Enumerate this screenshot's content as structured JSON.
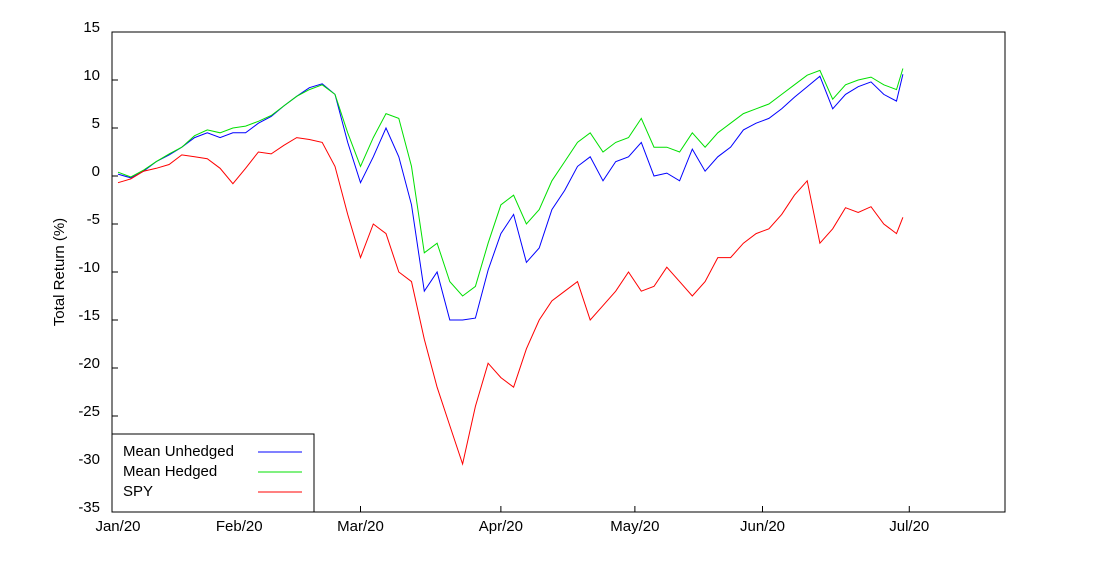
{
  "chart_data": {
    "type": "line",
    "y_label": "Total Return (%)",
    "x": [
      0,
      2,
      4,
      6,
      8,
      10,
      12,
      14,
      16,
      18,
      20,
      22,
      24,
      26,
      28,
      30,
      32,
      34,
      36,
      38,
      40,
      42,
      44,
      46,
      48,
      50,
      52,
      54,
      56,
      58,
      60,
      62,
      64,
      66,
      68,
      70,
      72,
      74,
      76,
      78,
      80,
      82,
      84,
      86,
      88,
      90,
      92,
      94,
      96,
      98,
      100,
      102,
      104,
      106,
      108,
      110,
      112,
      114,
      116,
      118,
      120,
      122,
      123
    ],
    "xlim": [
      0,
      139
    ],
    "xticks": [
      {
        "value": 0,
        "label": "Jan/20"
      },
      {
        "value": 19,
        "label": "Feb/20"
      },
      {
        "value": 38,
        "label": "Mar/20"
      },
      {
        "value": 60,
        "label": "Apr/20"
      },
      {
        "value": 81,
        "label": "May/20"
      },
      {
        "value": 101,
        "label": "Jun/20"
      },
      {
        "value": 124,
        "label": "Jul/20"
      }
    ],
    "ylim": [
      -35,
      15
    ],
    "yticks": [
      -35,
      -30,
      -25,
      -20,
      -15,
      -10,
      -5,
      0,
      5,
      10,
      15
    ],
    "legend": "lower left",
    "series": [
      {
        "name": "Mean Unhedged",
        "color": "#0000ff",
        "values": [
          0.2,
          -0.2,
          0.5,
          1.5,
          2.2,
          3.0,
          4.0,
          4.5,
          4.0,
          4.5,
          4.5,
          5.5,
          6.2,
          7.3,
          8.3,
          9.2,
          9.6,
          8.5,
          3.5,
          -0.7,
          2.0,
          5.0,
          2.0,
          -3,
          -12,
          -10,
          -15,
          -15,
          -14.8,
          -9.8,
          -6,
          -4,
          -9,
          -7.5,
          -3.5,
          -1.5,
          1,
          2,
          -0.5,
          1.5,
          2,
          3.5,
          0,
          0.3,
          -0.5,
          2.8,
          0.5,
          2,
          3,
          4.8,
          5.5,
          6,
          7,
          8.2,
          9.3,
          10.4,
          7,
          8.5,
          9.3,
          9.8,
          8.5,
          7.8,
          10.6
        ]
      },
      {
        "name": "Mean Hedged",
        "color": "#00e000",
        "values": [
          0.4,
          -0.1,
          0.6,
          1.5,
          2.3,
          3.0,
          4.2,
          4.8,
          4.5,
          5.0,
          5.2,
          5.7,
          6.3,
          7.3,
          8.3,
          9.0,
          9.5,
          8.5,
          4.5,
          1,
          4,
          6.5,
          6,
          1,
          -8,
          -7,
          -11,
          -12.5,
          -11.5,
          -7,
          -3,
          -2,
          -5,
          -3.5,
          -0.5,
          1.5,
          3.5,
          4.5,
          2.5,
          3.5,
          4,
          6,
          3,
          3,
          2.5,
          4.5,
          3,
          4.5,
          5.5,
          6.5,
          7,
          7.5,
          8.5,
          9.5,
          10.5,
          11,
          8,
          9.5,
          10,
          10.3,
          9.5,
          9,
          11.2
        ]
      },
      {
        "name": "SPY",
        "color": "#ff0000",
        "values": [
          -0.7,
          -0.3,
          0.5,
          0.8,
          1.2,
          2.2,
          2.0,
          1.8,
          0.8,
          -0.8,
          0.8,
          2.5,
          2.3,
          3.2,
          4,
          3.8,
          3.5,
          1,
          -4,
          -8.5,
          -5,
          -6,
          -10,
          -11,
          -17,
          -22,
          -26,
          -30,
          -24,
          -19.5,
          -21,
          -22,
          -18,
          -15,
          -13,
          -12,
          -11,
          -15,
          -13.5,
          -12,
          -10,
          -12,
          -11.5,
          -9.5,
          -11,
          -12.5,
          -11,
          -8.5,
          -8.5,
          -7,
          -6,
          -5.5,
          -4,
          -2,
          -0.5,
          -7,
          -5.5,
          -3.3,
          -3.8,
          -3.2,
          -5,
          -6,
          -4.3
        ]
      }
    ]
  }
}
